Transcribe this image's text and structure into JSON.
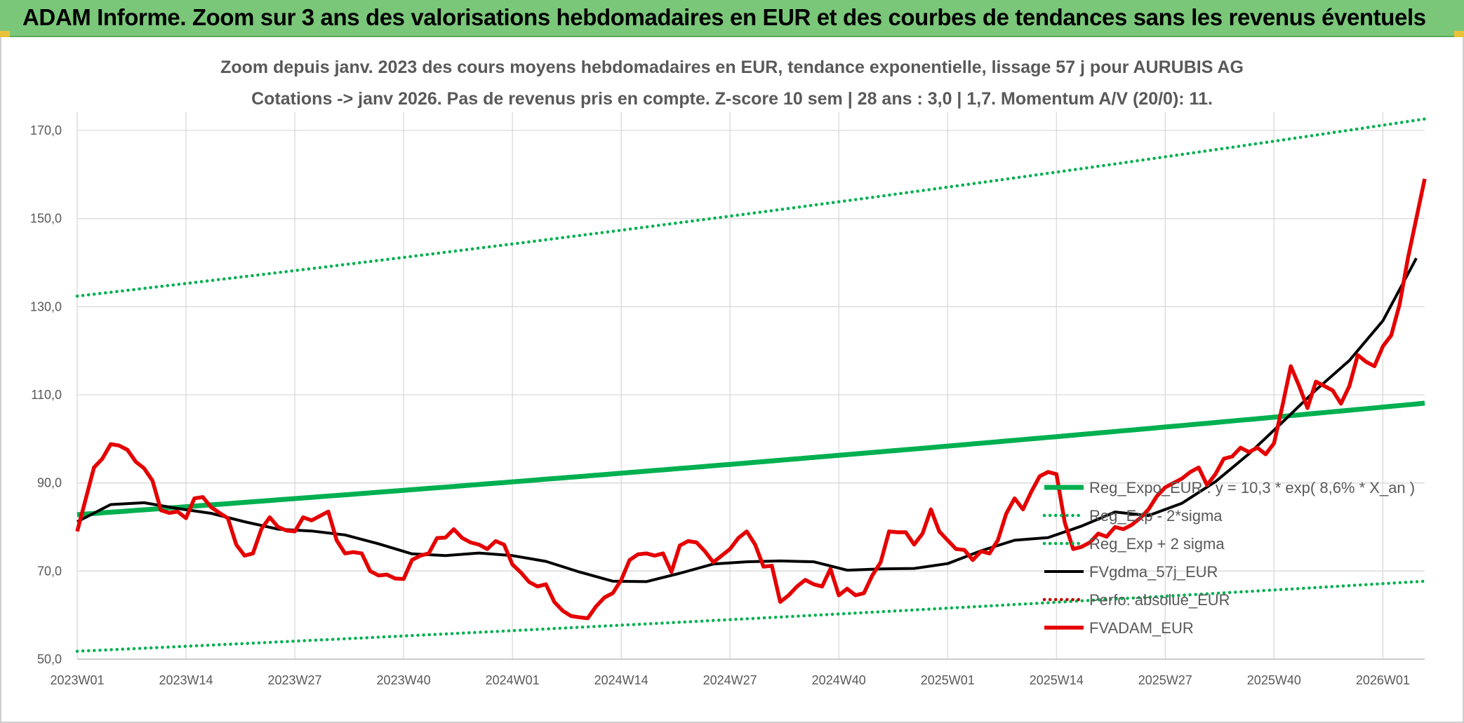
{
  "header": {
    "title": "ADAM Informe. Zoom sur 3 ans des valorisations hebdomadaires en EUR et des courbes de tendances sans les revenus éventuels"
  },
  "chart_data": {
    "type": "line",
    "title": "Zoom depuis janv. 2023 des cours moyens hebdomadaires en EUR, tendance exponentielle, lissage 57 j pour AURUBIS AG",
    "subtitle": "Cotations -> janv 2026. Pas de revenus pris en compte. Z-score 10 sem | 28 ans : 3,0 | 1,7. Momentum A/V (20/0): 11.",
    "xlabel": "",
    "ylabel": "",
    "ylim": [
      50,
      175
    ],
    "yticks": [
      "50,0",
      "70,0",
      "90,0",
      "110,0",
      "130,0",
      "150,0",
      "170,0"
    ],
    "x_tick_labels": [
      "2023W01",
      "2023W14",
      "2023W27",
      "2023W40",
      "2024W01",
      "2024W14",
      "2024W27",
      "2024W40",
      "2025W01",
      "2025W14",
      "2025W27",
      "2025W40",
      "2026W01"
    ],
    "x_range_weeks": [
      0,
      161
    ],
    "grid": "vertical and horizontal",
    "legend_position": "bottom-right",
    "series": [
      {
        "name": "Reg_Expo_EUR : y = 10,3 * exp( 8,6% * X_an )",
        "color": "#00b050",
        "style": "solid-thick",
        "x": [
          0,
          161
        ],
        "values": [
          82.8,
          108.1
        ],
        "interpolation": "exponential"
      },
      {
        "name": "Reg_Exp - 2*sigma",
        "color": "#00b050",
        "style": "dotted",
        "x": [
          0,
          161
        ],
        "values": [
          51.8,
          67.7
        ],
        "interpolation": "exponential"
      },
      {
        "name": "Reg_Exp + 2 sigma",
        "color": "#00b050",
        "style": "dotted",
        "x": [
          0,
          161
        ],
        "values": [
          132.4,
          172.6
        ],
        "interpolation": "exponential"
      },
      {
        "name": "FVgdma_57j_EUR",
        "color": "#000000",
        "style": "solid",
        "x": [
          0,
          4,
          8,
          12,
          16,
          20,
          24,
          28,
          32,
          36,
          40,
          44,
          48,
          52,
          56,
          60,
          64,
          68,
          72,
          76,
          80,
          84,
          88,
          92,
          96,
          100,
          104,
          108,
          112,
          116,
          120,
          124,
          128,
          132,
          136,
          140,
          144,
          148,
          152,
          156,
          160
        ],
        "values": [
          81.2,
          85.1,
          85.5,
          84.2,
          83.1,
          81.2,
          79.5,
          79.1,
          78.2,
          76.2,
          73.9,
          73.5,
          74.1,
          73.5,
          72.2,
          69.8,
          67.7,
          67.6,
          69.5,
          71.6,
          72.1,
          72.3,
          72.1,
          70.2,
          70.5,
          70.6,
          71.7,
          74.6,
          77.0,
          77.6,
          80.2,
          83.4,
          82.6,
          85.4,
          90.3,
          96.6,
          103.8,
          111.1,
          117.8,
          126.8,
          141.0
        ]
      },
      {
        "name": "Perfo. absolue_EUR",
        "color": "#c00000",
        "style": "dotted",
        "x": [],
        "values": []
      },
      {
        "name": "FVADAM_EUR",
        "color": "#e50000",
        "style": "solid-thick",
        "x": [
          0,
          2,
          3,
          4,
          5,
          6,
          7,
          8,
          9,
          10,
          11,
          12,
          13,
          14,
          15,
          16,
          17,
          18,
          19,
          20,
          21,
          22,
          23,
          24,
          25,
          26,
          27,
          28,
          29,
          30,
          31,
          32,
          33,
          34,
          35,
          36,
          37,
          38,
          39,
          40,
          41,
          42,
          43,
          44,
          45,
          46,
          47,
          48,
          49,
          50,
          51,
          52,
          53,
          54,
          55,
          56,
          57,
          58,
          59,
          60,
          61,
          62,
          63,
          64,
          65,
          66,
          67,
          68,
          69,
          70,
          71,
          72,
          73,
          74,
          75,
          76,
          77,
          78,
          79,
          80,
          81,
          82,
          83,
          84,
          85,
          86,
          87,
          88,
          89,
          90,
          91,
          92,
          93,
          94,
          95,
          96,
          97,
          98,
          99,
          100,
          101,
          102,
          103,
          104,
          105,
          106,
          107,
          108,
          109,
          110,
          111,
          112,
          113,
          114,
          115,
          116,
          117,
          118,
          119,
          120,
          121,
          122,
          123,
          124,
          125,
          126,
          127,
          128,
          129,
          130,
          131,
          132,
          133,
          134,
          135,
          136,
          137,
          138,
          139,
          140,
          141,
          142,
          143,
          144,
          145,
          146,
          147,
          148,
          149,
          150,
          151,
          152,
          153,
          154,
          155,
          156,
          157,
          158,
          159,
          161
        ],
        "values": [
          79.0,
          93.5,
          95.5,
          98.8,
          98.5,
          97.5,
          94.8,
          93.3,
          90.5,
          83.8,
          83.2,
          83.5,
          82.0,
          86.5,
          86.8,
          84.5,
          83.2,
          82.0,
          76.0,
          73.5,
          74.0,
          79.5,
          82.2,
          80.0,
          79.2,
          79.0,
          82.2,
          81.5,
          82.5,
          83.5,
          77.0,
          74.0,
          74.3,
          74.0,
          70.0,
          69.0,
          69.2,
          68.3,
          68.2,
          72.5,
          73.5,
          74.0,
          77.5,
          77.6,
          79.5,
          77.5,
          76.5,
          76.0,
          75.0,
          76.8,
          76.0,
          71.5,
          69.7,
          67.5,
          66.5,
          67.0,
          63.0,
          61.0,
          59.8,
          59.5,
          59.3,
          62.0,
          64.0,
          65.0,
          68.0,
          72.5,
          73.8,
          74.0,
          73.5,
          74.0,
          69.8,
          75.8,
          76.8,
          76.5,
          74.5,
          72.0,
          73.5,
          75.0,
          77.5,
          79.0,
          76.0,
          71.0,
          71.2,
          63.0,
          64.5,
          66.5,
          68.0,
          67.0,
          66.5,
          70.5,
          64.5,
          66.0,
          64.5,
          65.0,
          69.0,
          72.0,
          79.0,
          78.8,
          78.8,
          76.0,
          78.5,
          84.0,
          79.0,
          77.0,
          75.0,
          74.8,
          72.5,
          74.5,
          74.0,
          77.0,
          83.0,
          86.5,
          84.0,
          88.0,
          91.5,
          92.5,
          92.0,
          81.0,
          75.0,
          75.5,
          76.5,
          78.5,
          77.8,
          80.0,
          79.5,
          80.5,
          82.0,
          84.0,
          87.0,
          89.0,
          90.0,
          91.0,
          92.5,
          93.5,
          89.5,
          92.0,
          95.5,
          96.0,
          98.0,
          97.0,
          98.0,
          96.5,
          99.0,
          107.5,
          116.5,
          112.0,
          107.0,
          113.0,
          112.0,
          111.0,
          108.0,
          112.0,
          119.0,
          117.5,
          116.5,
          121.0,
          123.5,
          130.5,
          141.0,
          159.0
        ]
      }
    ]
  }
}
